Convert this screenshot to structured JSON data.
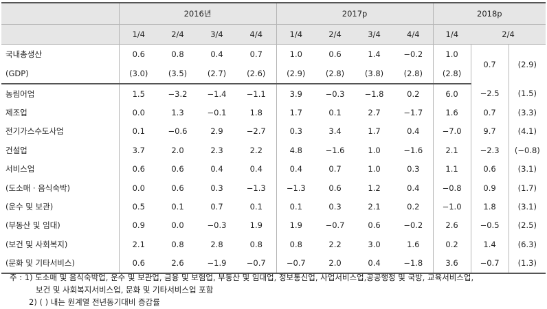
{
  "header": {
    "years": [
      "2016년",
      "2017p",
      "2018p"
    ],
    "quarters_2016": [
      "1/4",
      "2/4",
      "3/4",
      "4/4"
    ],
    "quarters_2017": [
      "1/4",
      "2/4",
      "3/4",
      "4/4"
    ],
    "quarters_2018": [
      "1/4",
      "2/4"
    ]
  },
  "gdp": {
    "label": "국내총생산",
    "label2": "(GDP)",
    "values": [
      "0.6",
      "0.8",
      "0.4",
      "0.7",
      "1.0",
      "0.6",
      "1.4",
      "−0.2",
      "1.0"
    ],
    "values2": [
      "(3.0)",
      "(3.5)",
      "(2.7)",
      "(2.6)",
      "(2.9)",
      "(2.8)",
      "(3.8)",
      "(2.8)",
      "(2.8)"
    ],
    "q2_2018": "0.7",
    "q2_2018_yoy": "(2.9)"
  },
  "rows": [
    {
      "label": "농림어업",
      "values": [
        "1.5",
        "−3.2",
        "−1.4",
        "−1.1",
        "3.9",
        "−0.3",
        "−1.8",
        "0.2",
        "6.0",
        "−2.5",
        "(1.5)"
      ]
    },
    {
      "label": "제조업",
      "values": [
        "0.0",
        "1.3",
        "−0.1",
        "1.8",
        "1.7",
        "0.1",
        "2.7",
        "−1.7",
        "1.6",
        "0.7",
        "(3.3)"
      ]
    },
    {
      "label": "전기가스수도사업",
      "values": [
        "0.1",
        "−0.6",
        "2.9",
        "−2.7",
        "0.3",
        "3.4",
        "1.7",
        "0.4",
        "−7.0",
        "9.7",
        "(4.1)"
      ]
    },
    {
      "label": "건설업",
      "values": [
        "3.7",
        "2.0",
        "2.3",
        "2.2",
        "4.8",
        "−1.6",
        "1.0",
        "−1.6",
        "2.1",
        "−2.3",
        "(−0.8)"
      ]
    },
    {
      "label": "서비스업",
      "values": [
        "0.6",
        "0.6",
        "0.4",
        "0.4",
        "0.4",
        "0.7",
        "1.0",
        "0.3",
        "1.1",
        "0.6",
        "(3.1)"
      ]
    },
    {
      "label": "(도소매 · 음식숙박)",
      "values": [
        "0.0",
        "0.6",
        "0.3",
        "−1.3",
        "−1.3",
        "0.6",
        "1.2",
        "0.4",
        "−0.8",
        "0.9",
        "(1.7)"
      ]
    },
    {
      "label": "(운수 및 보관)",
      "values": [
        "0.5",
        "0.1",
        "0.7",
        "0.1",
        "0.1",
        "0.3",
        "2.1",
        "0.2",
        "−1.0",
        "1.8",
        "(3.1)"
      ]
    },
    {
      "label": "(부동산 및 임대)",
      "values": [
        "0.9",
        "0.0",
        "−0.3",
        "1.9",
        "1.9",
        "−0.7",
        "0.6",
        "−0.2",
        "2.6",
        "−0.5",
        "(2.5)"
      ]
    },
    {
      "label": "(보건 및 사회복지)",
      "values": [
        "2.1",
        "0.8",
        "2.8",
        "0.8",
        "0.8",
        "2.2",
        "3.0",
        "1.6",
        "0.2",
        "1.4",
        "(6.3)"
      ]
    },
    {
      "label": "(문화 및 기타서비스)",
      "values": [
        "0.6",
        "2.6",
        "−1.9",
        "−0.7",
        "−0.7",
        "2.0",
        "0.4",
        "−1.8",
        "3.6",
        "−0.7",
        "(1.3)"
      ]
    }
  ],
  "notes": {
    "note1": "주 : 1) 도소매 및 음식숙박업, 운수 및 보관업, 금융 및 보험업, 부동산 및 임대업, 정보통신업, 사업서비스업,공공행정 및 국방, 교육서비스업,",
    "note1b": "보건 및 사회복지서비스업, 문화 및 기타서비스업 포함",
    "note2": "2) ( ) 내는 원계열 전년동기대비 증감률"
  }
}
